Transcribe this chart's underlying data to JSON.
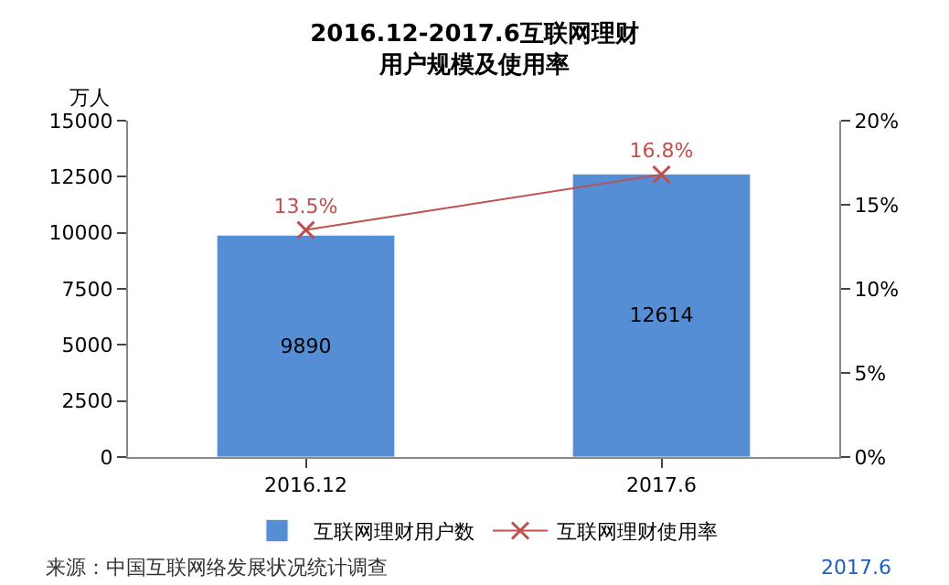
{
  "chart_data": {
    "type": "bar",
    "title": "2016.12-2017.6互联网理财",
    "subtitle": "用户规模及使用率",
    "ylabel": "万人",
    "categories": [
      "2016.12",
      "2017.6"
    ],
    "series": [
      {
        "name": "互联网理财用户数",
        "color": "#558ed5",
        "values": [
          9890,
          12614
        ],
        "value_labels": [
          "9890",
          "12614"
        ]
      },
      {
        "name": "互联网理财使用率",
        "type": "line",
        "axis": "y2",
        "color": "#c0504d",
        "marker": "cross",
        "values": [
          13.5,
          16.8
        ],
        "value_labels": [
          "13.5%",
          "16.8%"
        ]
      }
    ],
    "ylim": [
      0,
      15000
    ],
    "yticks": [
      0,
      2500,
      5000,
      7500,
      10000,
      12500,
      15000
    ],
    "y2lim": [
      0,
      20
    ],
    "y2ticks": [
      {
        "value": 0,
        "label": "0%"
      },
      {
        "value": 5,
        "label": "5%"
      },
      {
        "value": 10,
        "label": "10%"
      },
      {
        "value": 15,
        "label": "15%"
      },
      {
        "value": 20,
        "label": "20%"
      }
    ],
    "legend": "bottom",
    "annotations": [
      "来源：中国互联网络发展状况统计调查",
      "2017.6"
    ]
  }
}
